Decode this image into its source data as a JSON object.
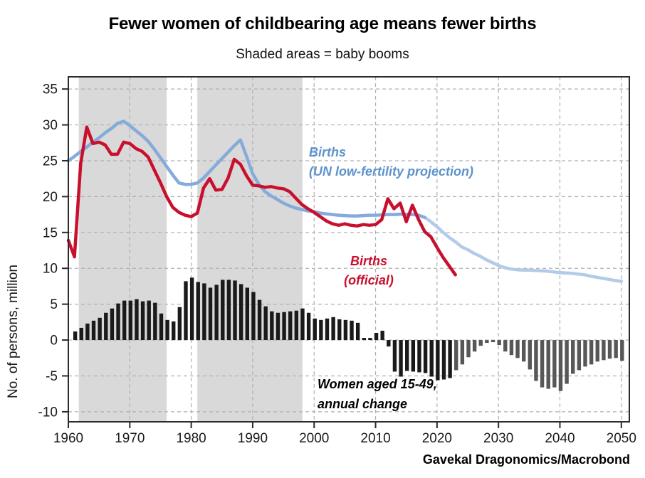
{
  "header": {
    "title": "Fewer women of childbearing age means fewer births",
    "subtitle": "Shaded areas = baby booms"
  },
  "footer": {
    "attribution": "Gavekal Dragonomics/Macrobond"
  },
  "colors": {
    "births_official": "#c8102e",
    "births_un_projection": "#85abdb",
    "births_un_projection_light": "#b2cbe9",
    "blue_label_text": "#5e92cc",
    "bars_historical": "#1a1a1a",
    "bars_projection": "#575757",
    "shading": "#d9d9d9",
    "gridline": "#b0b0b0",
    "frame": "#2b2b2b",
    "tick_text": "#1a1a1a"
  },
  "annotations": {
    "blue_label": {
      "line1": "Births",
      "line2": "(UN low-fertility projection)"
    },
    "red_label": {
      "line1": "Births",
      "line2": "(official)"
    },
    "bars_label": {
      "line1": "Women aged 15-49,",
      "line2": "annual change"
    }
  },
  "axes": {
    "y_label": "No. of persons, million",
    "y_ticks": [
      35,
      30,
      25,
      20,
      15,
      10,
      5,
      0,
      -5,
      -10
    ],
    "x_ticks": [
      1960,
      1970,
      1980,
      1990,
      2000,
      2010,
      2020,
      2030,
      2040,
      2050
    ]
  },
  "chart_data": {
    "type": "combo (line + bar)",
    "title": "Fewer women of childbearing age means fewer births",
    "subtitle": "Shaded areas = baby booms",
    "xlabel": "",
    "ylabel": "No. of persons, million",
    "xlim": [
      1960,
      2051.3
    ],
    "ylim": [
      -11.4,
      36.7
    ],
    "grid": "dashed, both axes",
    "legend_position": "in-plot text annotations",
    "shaded_regions": [
      {
        "start": 1961.7,
        "end": 1976.0,
        "label": "baby boom"
      },
      {
        "start": 1981.0,
        "end": 1998.1,
        "label": "baby boom"
      }
    ],
    "series": [
      {
        "name": "Births (UN low-fertility projection)",
        "type": "line",
        "unit": "million persons",
        "start_year": 1960,
        "projection_from": 2018,
        "values": [
          25.0,
          25.6,
          26.3,
          26.9,
          27.6,
          28.2,
          28.9,
          29.5,
          30.2,
          30.5,
          29.9,
          29.2,
          28.5,
          27.7,
          26.6,
          25.4,
          24.2,
          23.0,
          21.9,
          21.7,
          21.7,
          21.9,
          22.6,
          23.5,
          24.4,
          25.3,
          26.2,
          27.1,
          27.9,
          25.6,
          23.2,
          21.7,
          20.7,
          20.1,
          19.6,
          19.1,
          18.7,
          18.4,
          18.2,
          18.0,
          17.9,
          17.7,
          17.6,
          17.5,
          17.4,
          17.35,
          17.3,
          17.3,
          17.35,
          17.4,
          17.4,
          17.45,
          17.5,
          17.5,
          17.55,
          17.55,
          17.5,
          17.4,
          17.1,
          16.5,
          15.8,
          15.0,
          14.3,
          13.7,
          13.0,
          12.6,
          12.1,
          11.7,
          11.2,
          10.8,
          10.4,
          10.1,
          9.9,
          9.8,
          9.75,
          9.75,
          9.7,
          9.65,
          9.6,
          9.5,
          9.4,
          9.35,
          9.3,
          9.2,
          9.1,
          8.9,
          8.75,
          8.6,
          8.45,
          8.3,
          8.2
        ]
      },
      {
        "name": "Births (official)",
        "type": "line",
        "unit": "million persons",
        "start_year": 1960,
        "values": [
          13.9,
          11.6,
          24.6,
          29.7,
          27.4,
          27.6,
          27.2,
          25.9,
          25.9,
          27.6,
          27.4,
          26.7,
          26.3,
          25.5,
          23.7,
          21.9,
          20.0,
          18.5,
          17.8,
          17.4,
          17.2,
          17.7,
          21.2,
          22.5,
          20.9,
          21.0,
          22.6,
          25.2,
          24.5,
          22.9,
          21.6,
          21.5,
          21.3,
          21.4,
          21.2,
          21.1,
          20.7,
          19.8,
          18.9,
          18.3,
          17.8,
          17.2,
          16.6,
          16.2,
          16.0,
          16.2,
          16.0,
          15.9,
          16.1,
          16.0,
          16.1,
          16.8,
          19.7,
          18.3,
          19.1,
          16.5,
          18.8,
          16.8,
          15.1,
          14.4,
          12.9,
          11.5,
          10.3,
          9.1
        ]
      },
      {
        "name": "Women aged 15-49, annual change",
        "type": "bar",
        "unit": "million persons",
        "start_year": 1961,
        "projection_from": 2023,
        "values": [
          1.2,
          1.7,
          2.3,
          2.7,
          3.1,
          3.8,
          4.4,
          5.1,
          5.5,
          5.5,
          5.7,
          5.4,
          5.5,
          5.2,
          3.7,
          2.8,
          2.6,
          4.6,
          8.2,
          8.7,
          8.1,
          7.9,
          7.3,
          7.7,
          8.4,
          8.4,
          8.3,
          7.8,
          7.3,
          6.7,
          5.6,
          4.7,
          4.0,
          3.8,
          3.9,
          4.0,
          4.1,
          4.4,
          3.8,
          3.0,
          2.8,
          3.0,
          3.2,
          2.9,
          2.8,
          2.7,
          2.4,
          0.3,
          0.3,
          1.0,
          1.3,
          -0.9,
          -4.4,
          -5.1,
          -4.3,
          -4.4,
          -4.5,
          -4.6,
          -5.1,
          -5.6,
          -5.5,
          -5.3,
          -4.2,
          -3.4,
          -2.4,
          -1.6,
          -0.8,
          -0.4,
          -0.3,
          -0.7,
          -1.6,
          -2.1,
          -2.5,
          -3.0,
          -4.1,
          -5.7,
          -6.6,
          -6.8,
          -6.6,
          -7.1,
          -6.1,
          -4.7,
          -4.2,
          -3.7,
          -3.4,
          -3.0,
          -2.8,
          -2.6,
          -2.5,
          -2.9
        ]
      }
    ]
  }
}
